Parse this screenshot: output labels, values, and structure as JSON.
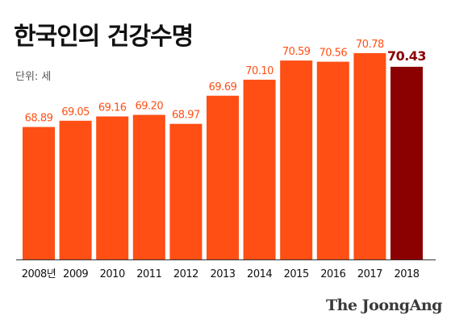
{
  "title": "한국인의 건강수명",
  "unit_label": "단위: 세",
  "brand": "The JoongAng",
  "colors": {
    "bar": "#ff4f14",
    "highlight_bar": "#8b0000",
    "value_label": "#ff4f14",
    "highlight_label": "#8b0000",
    "axis_text": "#111111"
  },
  "chart_data": {
    "type": "bar",
    "title": "한국인의 건강수명",
    "ylabel": "단위: 세",
    "categories": [
      "2008년",
      "2009",
      "2010",
      "2011",
      "2012",
      "2013",
      "2014",
      "2015",
      "2016",
      "2017",
      "2018"
    ],
    "values": [
      68.89,
      69.05,
      69.16,
      69.2,
      68.97,
      69.69,
      70.1,
      70.59,
      70.56,
      70.78,
      70.43
    ],
    "value_labels": [
      "68.89",
      "69.05",
      "69.16",
      "69.20",
      "68.97",
      "69.69",
      "70.10",
      "70.59",
      "70.56",
      "70.78",
      "70.43"
    ],
    "highlight_index": 10,
    "ylim": [
      0,
      72
    ],
    "grid": false,
    "legend": "none"
  }
}
